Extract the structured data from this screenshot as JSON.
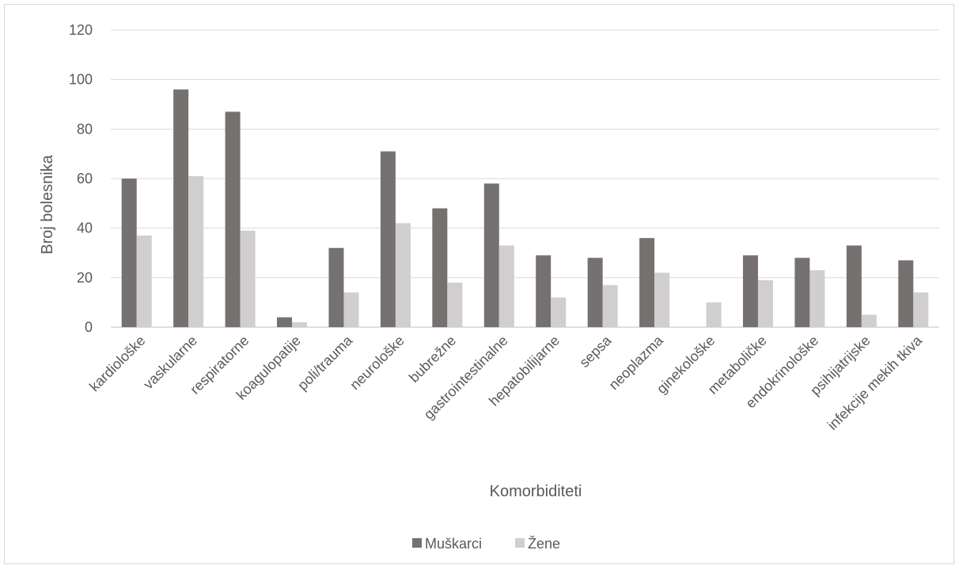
{
  "chart_data": {
    "type": "bar",
    "title": "",
    "xlabel": "Komorbiditeti",
    "ylabel": "Broj bolesnika",
    "ylim": [
      0,
      120
    ],
    "yticks": [
      0,
      20,
      40,
      60,
      80,
      100,
      120
    ],
    "grid": true,
    "legend_position": "bottom",
    "categories": [
      "kardiološke",
      "vaskularne",
      "respiratorne",
      "koagulopatije",
      "poli/trauma",
      "neurološke",
      "bubrežne",
      "gastrointestinalne",
      "hepatobilijarne",
      "sepsa",
      "neoplazma",
      "ginekološke",
      "metaboličke",
      "endokrinološke",
      "psihijatrijske",
      "infekcije mekih tkiva"
    ],
    "series": [
      {
        "name": "Muškarci",
        "color": "#767171",
        "values": [
          60,
          96,
          87,
          4,
          32,
          71,
          48,
          58,
          29,
          28,
          36,
          0,
          29,
          28,
          33,
          27
        ]
      },
      {
        "name": "Žene",
        "color": "#d0cece",
        "values": [
          37,
          61,
          39,
          2,
          14,
          42,
          18,
          33,
          12,
          17,
          22,
          10,
          19,
          23,
          5,
          14
        ]
      }
    ]
  }
}
